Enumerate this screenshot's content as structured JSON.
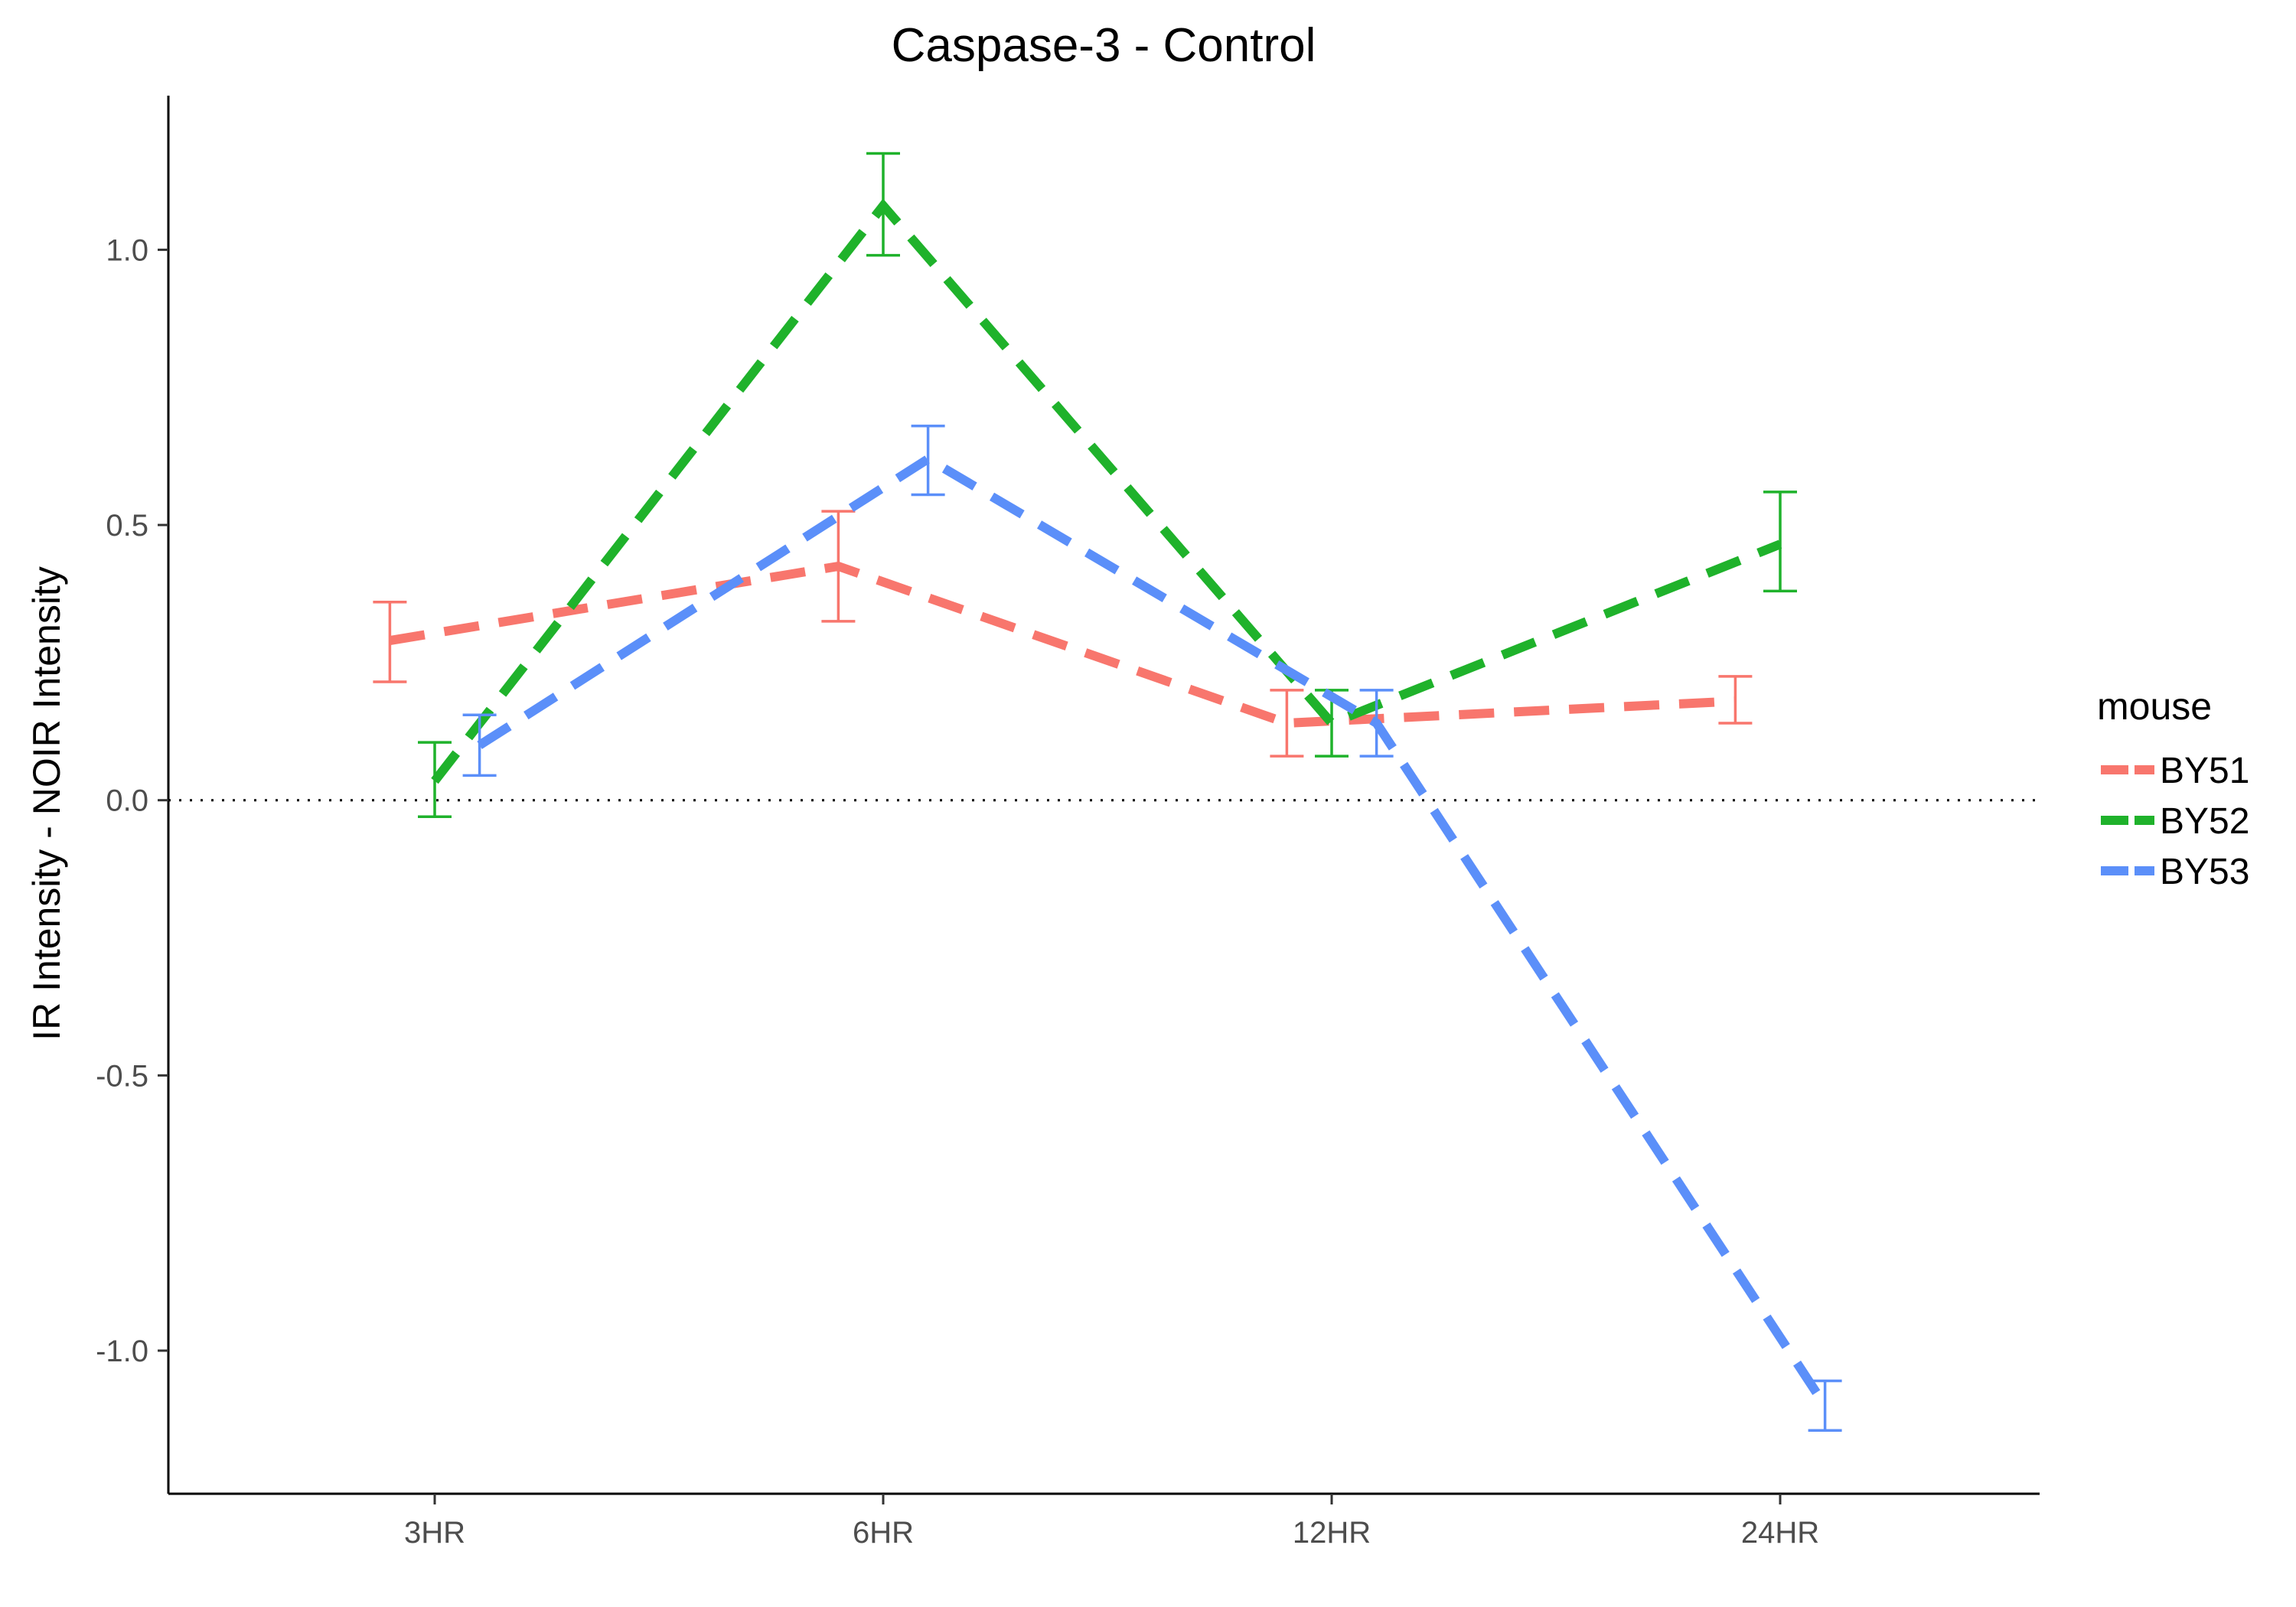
{
  "chart_data": {
    "type": "line",
    "title": "Caspase-3 - Control",
    "xlabel": "",
    "ylabel": "IR Intensity - NOIR Intensity",
    "categories": [
      "3HR",
      "6HR",
      "12HR",
      "24HR"
    ],
    "ylim": [
      -1.26,
      1.28
    ],
    "yticks": [
      1.0,
      0.5,
      0.0,
      -0.5,
      -1.0
    ],
    "ytick_labels": [
      "1.0",
      "0.5",
      "0.0",
      "-0.5",
      "-1.0"
    ],
    "reference_line": 0,
    "grid": false,
    "legend": {
      "title": "mouse",
      "position": "right"
    },
    "series": [
      {
        "name": "BY51",
        "color": "#f8766d",
        "offset": -0.1,
        "values": [
          0.29,
          0.425,
          0.14,
          0.18
        ],
        "err_low": [
          0.215,
          0.325,
          0.08,
          0.14
        ],
        "err_high": [
          0.36,
          0.525,
          0.2,
          0.225
        ]
      },
      {
        "name": "BY52",
        "color": "#1fb22b",
        "offset": 0.0,
        "values": [
          0.035,
          1.08,
          0.14,
          0.465
        ],
        "err_low": [
          -0.03,
          0.99,
          0.08,
          0.38
        ],
        "err_high": [
          0.105,
          1.175,
          0.2,
          0.56
        ]
      },
      {
        "name": "BY53",
        "color": "#5b8ff9",
        "offset": 0.1,
        "values": [
          0.1,
          0.62,
          0.14,
          -1.1
        ],
        "err_low": [
          0.045,
          0.555,
          0.08,
          -1.145
        ],
        "err_high": [
          0.155,
          0.68,
          0.2,
          -1.055
        ]
      }
    ]
  }
}
